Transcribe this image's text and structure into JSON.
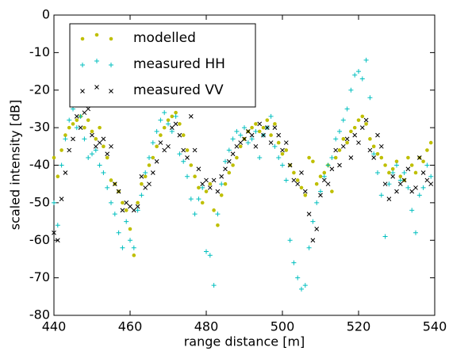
{
  "chart_data": {
    "type": "scatter",
    "xlabel": "range distance [m]",
    "ylabel": "scaled intensity [dB]",
    "xlim": [
      440,
      540
    ],
    "ylim": [
      -80,
      0
    ],
    "xticks": [
      440,
      460,
      480,
      500,
      520,
      540
    ],
    "yticks": [
      -80,
      -70,
      -60,
      -50,
      -40,
      -30,
      -20,
      -10,
      0
    ],
    "legend": "upper left",
    "grid": false,
    "x": [
      440,
      441,
      442,
      443,
      444,
      445,
      446,
      447,
      448,
      449,
      450,
      451,
      452,
      453,
      454,
      455,
      456,
      457,
      458,
      459,
      460,
      461,
      462,
      463,
      464,
      465,
      466,
      467,
      468,
      469,
      470,
      471,
      472,
      473,
      474,
      475,
      476,
      477,
      478,
      479,
      480,
      481,
      482,
      483,
      484,
      485,
      486,
      487,
      488,
      489,
      490,
      491,
      492,
      493,
      494,
      495,
      496,
      497,
      498,
      499,
      500,
      501,
      502,
      503,
      504,
      505,
      506,
      507,
      508,
      509,
      510,
      511,
      512,
      513,
      514,
      515,
      516,
      517,
      518,
      519,
      520,
      521,
      522,
      523,
      524,
      525,
      526,
      527,
      528,
      529,
      530,
      531,
      532,
      533,
      534,
      535,
      536,
      537,
      538,
      539
    ],
    "series": [
      {
        "name": "modelled",
        "color": "#bfbf00",
        "marker": "o",
        "values": [
          -38,
          -43,
          -36,
          -32,
          -30,
          -29,
          -28,
          -27,
          -30,
          -28,
          -31,
          -33,
          -30,
          -35,
          -38,
          -44,
          -45,
          -47,
          -50,
          -52,
          -57,
          -64,
          -50,
          -45,
          -43,
          -40,
          -38,
          -35,
          -32,
          -30,
          -28,
          -27,
          -26,
          -29,
          -32,
          -36,
          -40,
          -43,
          -46,
          -50,
          -47,
          -45,
          -52,
          -56,
          -48,
          -45,
          -42,
          -40,
          -38,
          -35,
          -33,
          -31,
          -30,
          -29,
          -31,
          -30,
          -28,
          -32,
          -29,
          -34,
          -37,
          -36,
          -40,
          -42,
          -44,
          -46,
          -48,
          -38,
          -39,
          -45,
          -43,
          -42,
          -40,
          -47,
          -38,
          -36,
          -33,
          -34,
          -31,
          -30,
          -28,
          -27,
          -29,
          -33,
          -35,
          -37,
          -38,
          -40,
          -42,
          -41,
          -39,
          -43,
          -44,
          -38,
          -40,
          -42,
          -38,
          -39,
          -36,
          -34
        ]
      },
      {
        "name": "measured HH",
        "color": "#00bfbf",
        "marker": "+",
        "values": [
          -50,
          -56,
          -40,
          -33,
          -28,
          -25,
          -30,
          -27,
          -33,
          -38,
          -37,
          -36,
          -40,
          -42,
          -46,
          -50,
          -53,
          -58,
          -62,
          -55,
          -60,
          -62,
          -52,
          -48,
          -42,
          -38,
          -34,
          -31,
          -28,
          -26,
          -29,
          -31,
          -27,
          -37,
          -39,
          -43,
          -49,
          -53,
          -49,
          -46,
          -63,
          -64,
          -72,
          -53,
          -45,
          -39,
          -36,
          -33,
          -31,
          -32,
          -30,
          -34,
          -33,
          -31,
          -38,
          -32,
          -30,
          -27,
          -35,
          -38,
          -40,
          -44,
          -60,
          -66,
          -70,
          -73,
          -72,
          -62,
          -55,
          -50,
          -47,
          -43,
          -40,
          -38,
          -33,
          -31,
          -28,
          -25,
          -20,
          -16,
          -15,
          -17,
          -12,
          -22,
          -37,
          -42,
          -48,
          -59,
          -45,
          -42,
          -40,
          -44,
          -42,
          -46,
          -52,
          -58,
          -48,
          -46,
          -40,
          -43
        ]
      },
      {
        "name": "measured VV",
        "color": "#000000",
        "marker": "x",
        "values": [
          -58,
          -60,
          -49,
          -42,
          -36,
          -33,
          -27,
          -30,
          -26,
          -25,
          -32,
          -35,
          -34,
          -33,
          -37,
          -35,
          -45,
          -47,
          -52,
          -50,
          -51,
          -52,
          -51,
          -43,
          -46,
          -45,
          -42,
          -39,
          -34,
          -36,
          -35,
          -30,
          -29,
          -32,
          -36,
          -38,
          -27,
          -36,
          -41,
          -45,
          -44,
          -46,
          -44,
          -47,
          -43,
          -41,
          -39,
          -37,
          -35,
          -34,
          -33,
          -31,
          -32,
          -35,
          -29,
          -32,
          -30,
          -34,
          -30,
          -32,
          -36,
          -34,
          -40,
          -44,
          -45,
          -42,
          -47,
          -53,
          -60,
          -57,
          -48,
          -44,
          -45,
          -41,
          -36,
          -40,
          -35,
          -33,
          -38,
          -32,
          -34,
          -30,
          -28,
          -36,
          -38,
          -32,
          -35,
          -45,
          -49,
          -43,
          -47,
          -45,
          -44,
          -41,
          -47,
          -46,
          -38,
          -42,
          -44,
          -45
        ]
      }
    ]
  }
}
